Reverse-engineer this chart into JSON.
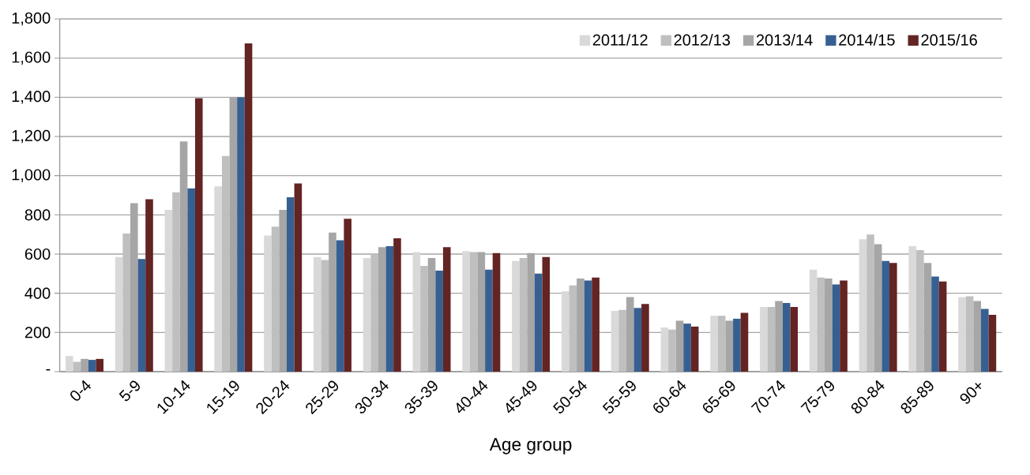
{
  "chart_data": {
    "type": "bar",
    "xlabel": "Age group",
    "categories": [
      "0-4",
      "5-9",
      "10-14",
      "15-19",
      "20-24",
      "25-29",
      "30-34",
      "35-39",
      "40-44",
      "45-49",
      "50-54",
      "55-59",
      "60-64",
      "65-69",
      "70-74",
      "75-79",
      "80-84",
      "85-89",
      "90+"
    ],
    "series": [
      {
        "name": "2011/12",
        "color": "#d9d9d9",
        "values": [
          80,
          585,
          825,
          945,
          695,
          585,
          580,
          610,
          615,
          565,
          410,
          310,
          225,
          285,
          330,
          520,
          675,
          640,
          380
        ]
      },
      {
        "name": "2012/13",
        "color": "#bfbfbf",
        "values": [
          50,
          705,
          915,
          1100,
          740,
          570,
          600,
          540,
          610,
          580,
          440,
          315,
          215,
          285,
          330,
          480,
          700,
          620,
          385
        ]
      },
      {
        "name": "2013/14",
        "color": "#a6a6a6",
        "values": [
          65,
          860,
          1175,
          1400,
          825,
          710,
          635,
          580,
          610,
          605,
          475,
          380,
          260,
          260,
          360,
          475,
          650,
          555,
          360
        ]
      },
      {
        "name": "2014/15",
        "color": "#376092",
        "values": [
          60,
          575,
          935,
          1400,
          890,
          670,
          640,
          515,
          520,
          500,
          465,
          325,
          245,
          270,
          350,
          445,
          565,
          485,
          320
        ]
      },
      {
        "name": "2015/16",
        "color": "#632423",
        "values": [
          65,
          880,
          1395,
          1675,
          960,
          780,
          680,
          635,
          605,
          585,
          480,
          345,
          230,
          300,
          330,
          465,
          555,
          460,
          290
        ]
      }
    ],
    "ylim": [
      0,
      1800
    ],
    "yticks": [
      {
        "value": 0,
        "label": "-"
      },
      200,
      400,
      600,
      800,
      {
        "value": 1000,
        "label": "1,000"
      },
      {
        "value": 1200,
        "label": "1,200"
      },
      {
        "value": 1400,
        "label": "1,400"
      },
      {
        "value": 1600,
        "label": "1,600"
      },
      {
        "value": 1800,
        "label": "1,800"
      }
    ],
    "grid": "y",
    "legend": "top right"
  }
}
